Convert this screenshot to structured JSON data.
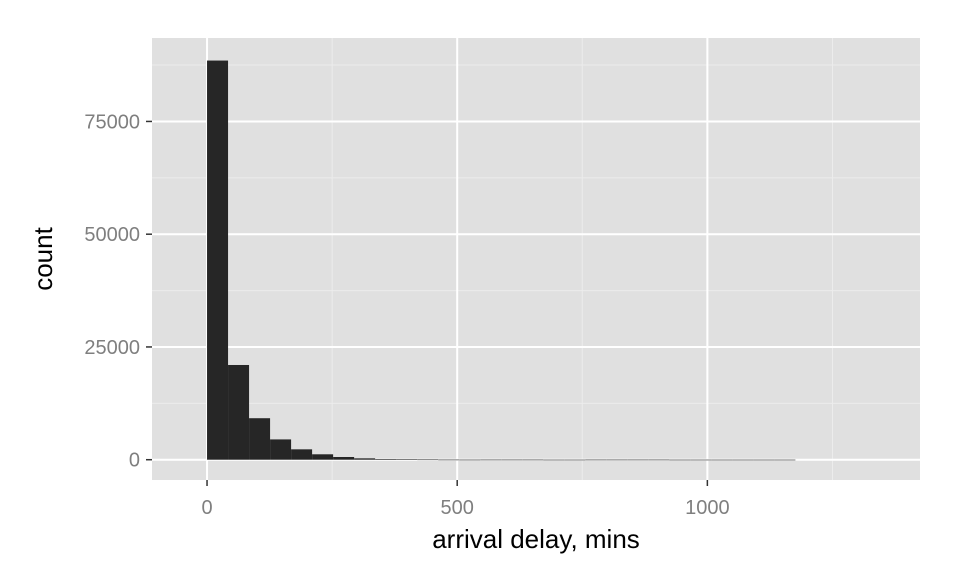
{
  "colors": {
    "panel_background": "#e0e0e0",
    "grid_major": "#ffffff",
    "grid_minor": "#ececec",
    "bar_fill": "#262626",
    "tick_text": "#7f7f7f",
    "axis_text": "#000000"
  },
  "chart_data": {
    "type": "bar",
    "xlabel": "arrival delay, mins",
    "ylabel": "count",
    "xlim": [
      -110,
      1425
    ],
    "ylim": [
      -4500,
      93500
    ],
    "x_ticks": [
      0,
      500,
      1000
    ],
    "x_tick_labels": [
      "0",
      "500",
      "1000"
    ],
    "x_minor_ticks": [
      250,
      750,
      1250
    ],
    "y_ticks": [
      0,
      25000,
      50000,
      75000
    ],
    "y_tick_labels": [
      "0",
      "25000",
      "50000",
      "75000"
    ],
    "y_minor_ticks": [
      12500,
      37500,
      62500,
      87500
    ],
    "grid": true,
    "bin_width": 42,
    "bins": [
      {
        "x0": 0,
        "x1": 42,
        "count": 88500
      },
      {
        "x0": 42,
        "x1": 84,
        "count": 21000
      },
      {
        "x0": 84,
        "x1": 126,
        "count": 9200
      },
      {
        "x0": 126,
        "x1": 168,
        "count": 4500
      },
      {
        "x0": 168,
        "x1": 210,
        "count": 2300
      },
      {
        "x0": 210,
        "x1": 252,
        "count": 1200
      },
      {
        "x0": 252,
        "x1": 294,
        "count": 600
      },
      {
        "x0": 294,
        "x1": 336,
        "count": 300
      },
      {
        "x0": 336,
        "x1": 378,
        "count": 150
      },
      {
        "x0": 378,
        "x1": 420,
        "count": 80
      },
      {
        "x0": 420,
        "x1": 462,
        "count": 50
      },
      {
        "x0": 462,
        "x1": 504,
        "count": 20
      },
      {
        "x0": 504,
        "x1": 546,
        "count": 10
      },
      {
        "x0": 546,
        "x1": 588,
        "count": 20
      },
      {
        "x0": 588,
        "x1": 630,
        "count": 20
      },
      {
        "x0": 630,
        "x1": 672,
        "count": 20
      },
      {
        "x0": 672,
        "x1": 714,
        "count": 5
      },
      {
        "x0": 714,
        "x1": 756,
        "count": 5
      },
      {
        "x0": 756,
        "x1": 798,
        "count": 20
      },
      {
        "x0": 798,
        "x1": 840,
        "count": 20
      },
      {
        "x0": 840,
        "x1": 882,
        "count": 20
      },
      {
        "x0": 882,
        "x1": 924,
        "count": 20
      },
      {
        "x0": 924,
        "x1": 966,
        "count": 5
      },
      {
        "x0": 966,
        "x1": 1008,
        "count": 5
      },
      {
        "x0": 1008,
        "x1": 1050,
        "count": 5
      },
      {
        "x0": 1050,
        "x1": 1092,
        "count": 5
      },
      {
        "x0": 1092,
        "x1": 1134,
        "count": 5
      },
      {
        "x0": 1134,
        "x1": 1176,
        "count": 5
      }
    ]
  }
}
